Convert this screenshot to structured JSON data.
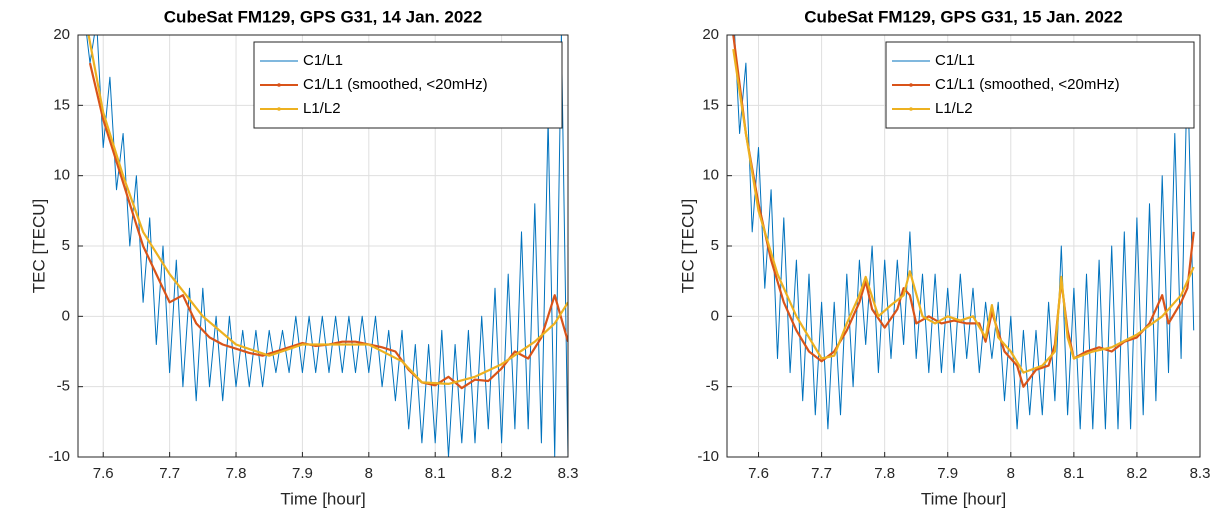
{
  "chart_data": [
    {
      "type": "line",
      "title": "CubeSat FM129, GPS G31, 14 Jan. 2022",
      "xlabel": "Time [hour]",
      "ylabel": "TEC [TECU]",
      "xlim": [
        7.562,
        8.3
      ],
      "ylim": [
        -10,
        20
      ],
      "xticks": [
        7.6,
        7.7,
        7.8,
        7.9,
        8,
        8.1,
        8.2,
        8.3
      ],
      "yticks": [
        -10,
        -5,
        0,
        5,
        10,
        15,
        20
      ],
      "grid": true,
      "legend": "northeast",
      "series": [
        {
          "name": "C1/L1",
          "color": "#0072BD",
          "x": [
            7.57,
            7.58,
            7.59,
            7.6,
            7.61,
            7.62,
            7.63,
            7.64,
            7.65,
            7.66,
            7.67,
            7.68,
            7.69,
            7.7,
            7.71,
            7.72,
            7.73,
            7.74,
            7.75,
            7.76,
            7.77,
            7.78,
            7.79,
            7.8,
            7.81,
            7.82,
            7.83,
            7.84,
            7.85,
            7.86,
            7.87,
            7.88,
            7.89,
            7.9,
            7.91,
            7.92,
            7.93,
            7.94,
            7.95,
            7.96,
            7.97,
            7.98,
            7.99,
            8,
            8.01,
            8.02,
            8.03,
            8.04,
            8.05,
            8.06,
            8.07,
            8.08,
            8.09,
            8.1,
            8.11,
            8.12,
            8.13,
            8.14,
            8.15,
            8.16,
            8.17,
            8.18,
            8.19,
            8.2,
            8.21,
            8.22,
            8.23,
            8.24,
            8.25,
            8.26,
            8.27,
            8.28,
            8.29,
            8.3
          ],
          "values": [
            22,
            18,
            21,
            12,
            17,
            9,
            13,
            5,
            10,
            1,
            7,
            -2,
            5,
            -4,
            4,
            -5,
            2,
            -6,
            2,
            -5,
            0,
            -6,
            0,
            -5,
            -1,
            -5,
            -1,
            -5,
            -1,
            -4,
            -1,
            -4,
            0,
            -4,
            0,
            -4,
            0,
            -4,
            0,
            -4,
            0,
            -4,
            0,
            -4,
            0,
            -5,
            -1,
            -6,
            -1,
            -8,
            -2,
            -9,
            -2,
            -9,
            -1,
            -10,
            -2,
            -9,
            -1,
            -9,
            0,
            -8,
            2,
            -9,
            3,
            -8,
            6,
            -8,
            8,
            -9,
            14,
            -10,
            20,
            -10
          ]
        },
        {
          "name": "C1/L1 (smoothed, <20mHz)",
          "color": "#D95319",
          "marker": true,
          "x": [
            7.58,
            7.6,
            7.62,
            7.64,
            7.66,
            7.68,
            7.7,
            7.72,
            7.74,
            7.76,
            7.78,
            7.8,
            7.82,
            7.84,
            7.86,
            7.88,
            7.9,
            7.92,
            7.94,
            7.96,
            7.98,
            8,
            8.02,
            8.04,
            8.06,
            8.08,
            8.1,
            8.12,
            8.14,
            8.16,
            8.18,
            8.2,
            8.22,
            8.24,
            8.26,
            8.28,
            8.3
          ],
          "values": [
            18,
            14,
            11,
            8,
            5,
            3,
            1,
            1.5,
            -0.5,
            -1.5,
            -2,
            -2.3,
            -2.6,
            -2.8,
            -2.5,
            -2.2,
            -1.9,
            -2.1,
            -2,
            -1.8,
            -1.8,
            -2,
            -2.2,
            -2.5,
            -3.8,
            -4.7,
            -4.9,
            -4.3,
            -5.1,
            -4.5,
            -4.6,
            -3.7,
            -2.5,
            -3,
            -1.5,
            1.5,
            -1.8
          ]
        },
        {
          "name": "L1/L2",
          "color": "#EDB120",
          "marker": true,
          "x": [
            7.57,
            7.6,
            7.63,
            7.66,
            7.7,
            7.75,
            7.8,
            7.85,
            7.9,
            7.95,
            8,
            8.05,
            8.08,
            8.12,
            8.16,
            8.2,
            8.25,
            8.28,
            8.3
          ],
          "values": [
            22,
            14.5,
            10,
            6,
            3,
            0,
            -2,
            -2.8,
            -2,
            -2,
            -2,
            -3.2,
            -4.7,
            -4.8,
            -4.3,
            -3.4,
            -1.8,
            -0.5,
            1
          ]
        }
      ]
    },
    {
      "type": "line",
      "title": "CubeSat FM129, GPS G31, 15 Jan. 2022",
      "xlabel": "Time [hour]",
      "ylabel": "TEC [TECU]",
      "xlim": [
        7.55,
        8.3
      ],
      "ylim": [
        -10,
        20
      ],
      "xticks": [
        7.6,
        7.7,
        7.8,
        7.9,
        8,
        8.1,
        8.2,
        8.3
      ],
      "yticks": [
        -10,
        -5,
        0,
        5,
        10,
        15,
        20
      ],
      "grid": true,
      "legend": "northeast",
      "series": [
        {
          "name": "C1/L1",
          "color": "#0072BD",
          "x": [
            7.56,
            7.57,
            7.58,
            7.59,
            7.6,
            7.61,
            7.62,
            7.63,
            7.64,
            7.65,
            7.66,
            7.67,
            7.68,
            7.69,
            7.7,
            7.71,
            7.72,
            7.73,
            7.74,
            7.75,
            7.76,
            7.77,
            7.78,
            7.79,
            7.8,
            7.81,
            7.82,
            7.83,
            7.84,
            7.85,
            7.86,
            7.87,
            7.88,
            7.89,
            7.9,
            7.91,
            7.92,
            7.93,
            7.94,
            7.95,
            7.96,
            7.97,
            7.98,
            7.99,
            8,
            8.01,
            8.02,
            8.03,
            8.04,
            8.05,
            8.06,
            8.07,
            8.08,
            8.09,
            8.1,
            8.11,
            8.12,
            8.13,
            8.14,
            8.15,
            8.16,
            8.17,
            8.18,
            8.19,
            8.2,
            8.21,
            8.22,
            8.23,
            8.24,
            8.25,
            8.26,
            8.27,
            8.28,
            8.29
          ],
          "values": [
            22,
            13,
            18,
            6,
            12,
            2,
            9,
            -3,
            7,
            -4,
            4,
            -6,
            3,
            -7,
            1,
            -8,
            1,
            -7,
            3,
            -5,
            4,
            -2,
            5,
            -4,
            4,
            -3,
            4,
            -2,
            6,
            -3,
            3,
            -4,
            3,
            -4,
            2,
            -4,
            3,
            -3,
            2,
            -4,
            1,
            -3,
            1,
            -6,
            0,
            -8,
            -1,
            -7,
            -1,
            -7,
            1,
            -6,
            5,
            -7,
            2,
            -8,
            3,
            -8,
            4,
            -8,
            5,
            -8,
            6,
            -8,
            7,
            -7,
            8,
            -6,
            10,
            -4,
            13,
            -3,
            18,
            -1
          ]
        },
        {
          "name": "C1/L1 (smoothed, <20mHz)",
          "color": "#D95319",
          "marker": true,
          "x": [
            7.56,
            7.58,
            7.6,
            7.62,
            7.64,
            7.66,
            7.68,
            7.7,
            7.72,
            7.74,
            7.76,
            7.77,
            7.78,
            7.8,
            7.82,
            7.83,
            7.84,
            7.85,
            7.87,
            7.89,
            7.91,
            7.93,
            7.95,
            7.96,
            7.97,
            7.99,
            8.01,
            8.02,
            8.04,
            8.06,
            8.07,
            8.08,
            8.09,
            8.1,
            8.12,
            8.14,
            8.16,
            8.18,
            8.2,
            8.22,
            8.24,
            8.25,
            8.27,
            8.28,
            8.29
          ],
          "values": [
            20,
            13,
            8,
            4,
            1,
            -1,
            -2.5,
            -3.2,
            -2.5,
            -1,
            1,
            2.5,
            0.5,
            -0.8,
            0.5,
            2,
            1.5,
            -0.5,
            0,
            -0.5,
            -0.3,
            -0.5,
            -0.5,
            -1.8,
            0.3,
            -2.5,
            -3.5,
            -5,
            -3.8,
            -3.5,
            -2,
            2.5,
            -1,
            -3,
            -2.5,
            -2.2,
            -2.5,
            -1.8,
            -1.5,
            -0.5,
            1.5,
            -0.5,
            1,
            2,
            6
          ]
        },
        {
          "name": "L1/L2",
          "color": "#EDB120",
          "marker": true,
          "x": [
            7.56,
            7.58,
            7.6,
            7.63,
            7.66,
            7.7,
            7.72,
            7.74,
            7.76,
            7.77,
            7.79,
            7.81,
            7.83,
            7.84,
            7.86,
            7.88,
            7.9,
            7.92,
            7.94,
            7.96,
            7.97,
            7.98,
            8,
            8.02,
            8.05,
            8.07,
            8.08,
            8.09,
            8.1,
            8.13,
            8.16,
            8.2,
            8.24,
            8.27,
            8.29
          ],
          "values": [
            19,
            13,
            7.5,
            3,
            0,
            -3,
            -2.8,
            -0.5,
            1.5,
            2.8,
            0,
            0.8,
            1.5,
            3.2,
            0,
            -0.5,
            0,
            -0.3,
            0,
            -1.5,
            0.8,
            -1.5,
            -2.5,
            -4,
            -3.5,
            -2.5,
            2.8,
            -1.5,
            -3,
            -2.5,
            -2.2,
            -1.3,
            0,
            1.5,
            3.5
          ]
        }
      ]
    }
  ]
}
